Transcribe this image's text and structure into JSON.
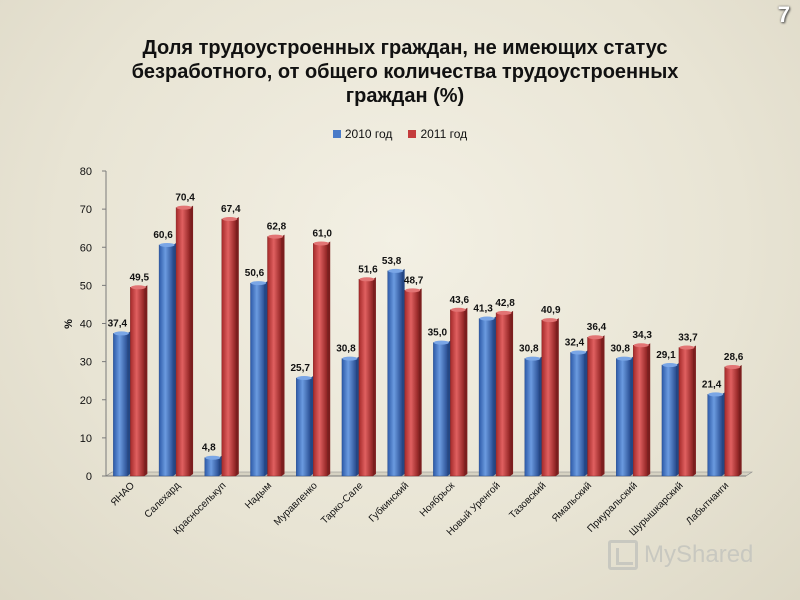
{
  "page_number": "7",
  "watermark": "MyShared",
  "colors": {
    "series_2010": "#4a7bc8",
    "series_2011": "#c43c3c"
  },
  "chart_data": {
    "type": "bar",
    "title_lines": [
      "Доля трудоустроенных граждан, не имеющих статус",
      "безработного, от общего количества трудоустроенных",
      "граждан (%)"
    ],
    "xlabel": "",
    "ylabel": "%",
    "ylim": [
      0,
      80
    ],
    "yticks": [
      0,
      10,
      20,
      30,
      40,
      50,
      60,
      70,
      80
    ],
    "grid": false,
    "legend_position": "top-center",
    "categories": [
      "ЯНАО",
      "Салехард",
      "Красноселькуп",
      "Надым",
      "Муравленко",
      "Тарко-Сале",
      "Губкинский",
      "Ноябрьск",
      "Новый Уренгой",
      "Тазовский",
      "Ямальский",
      "Приуральский",
      "Шурышкарский",
      "Лабытнанги"
    ],
    "series": [
      {
        "name": "2010 год",
        "values": [
          37.4,
          60.6,
          4.8,
          50.6,
          25.7,
          30.8,
          53.8,
          35.0,
          41.3,
          30.8,
          32.4,
          30.8,
          29.1,
          21.4
        ],
        "labels": [
          "37,4",
          "60,6",
          "4,8",
          "50,6",
          "25,7",
          "30,8",
          "53,8",
          "35,0",
          "41,3",
          "30,8",
          "32,4",
          "30,8",
          "29,1",
          "21,4"
        ]
      },
      {
        "name": "2011 год",
        "values": [
          49.5,
          70.4,
          67.4,
          62.8,
          61.0,
          51.6,
          48.7,
          43.6,
          42.8,
          40.9,
          36.4,
          34.3,
          33.7,
          28.6
        ],
        "labels": [
          "49,5",
          "70,4",
          "67,4",
          "62,8",
          "61,0",
          "51,6",
          "48,7",
          "43,6",
          "42,8",
          "40,9",
          "36,4",
          "34,3",
          "33,7",
          "28,6"
        ]
      }
    ]
  }
}
